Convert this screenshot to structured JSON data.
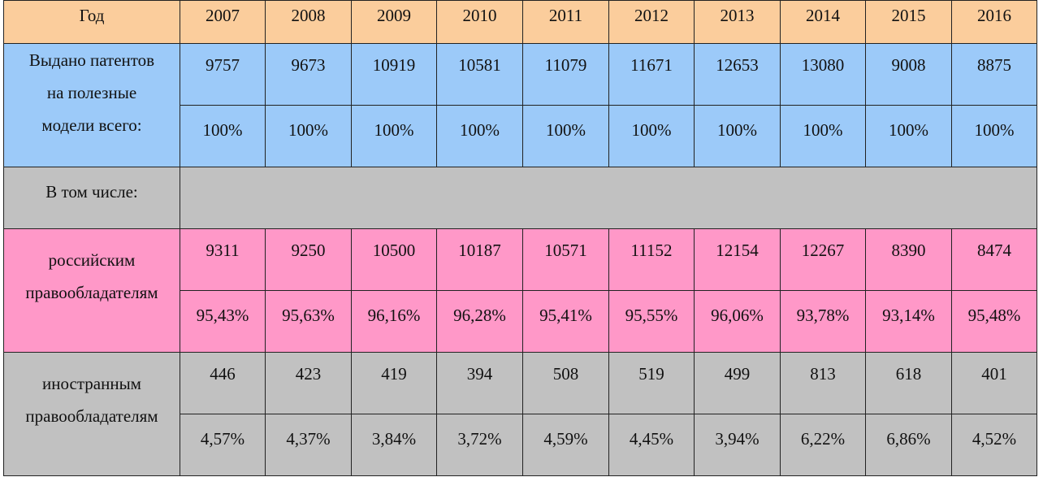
{
  "table": {
    "header_label": "Год",
    "years": [
      "2007",
      "2008",
      "2009",
      "2010",
      "2011",
      "2012",
      "2013",
      "2014",
      "2015",
      "2016"
    ],
    "total": {
      "label_lines": [
        "Выдано патентов",
        "на полезные",
        "модели всего:"
      ],
      "counts": [
        "9757",
        "9673",
        "10919",
        "10581",
        "11079",
        "11671",
        "12653",
        "13080",
        "9008",
        "8875"
      ],
      "percents": [
        "100%",
        "100%",
        "100%",
        "100%",
        "100%",
        "100%",
        "100%",
        "100%",
        "100%",
        "100%"
      ]
    },
    "including_label": "В том числе:",
    "russian": {
      "label_lines": [
        "российским",
        "правообладателям"
      ],
      "counts": [
        "9311",
        "9250",
        "10500",
        "10187",
        "10571",
        "11152",
        "12154",
        "12267",
        "8390",
        "8474"
      ],
      "percents": [
        "95,43%",
        "95,63%",
        "96,16%",
        "96,28%",
        "95,41%",
        "95,55%",
        "96,06%",
        "93,78%",
        "93,14%",
        "95,48%"
      ]
    },
    "foreign": {
      "label_lines": [
        "иностранным",
        "правообладателям"
      ],
      "counts": [
        "446",
        "423",
        "419",
        "394",
        "508",
        "519",
        "499",
        "813",
        "618",
        "401"
      ],
      "percents": [
        "4,57%",
        "4,37%",
        "3,84%",
        "3,72%",
        "4,59%",
        "4,45%",
        "3,94%",
        "6,22%",
        "6,86%",
        "4,52%"
      ]
    },
    "colors": {
      "header": "#fbcd9c",
      "total": "#9ccaf9",
      "including": "#c1c1c1",
      "russian": "#ff98c8",
      "foreign": "#c1c1c1"
    }
  }
}
